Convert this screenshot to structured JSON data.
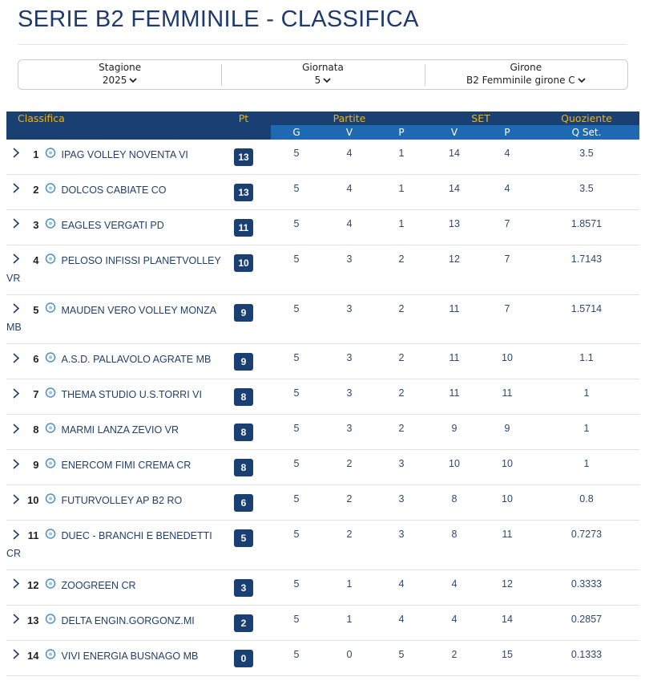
{
  "header": {
    "title": "SERIE B2 FEMMINILE - CLASSIFICA"
  },
  "filters": [
    {
      "label": "Stagione",
      "value": "2025"
    },
    {
      "label": "Giornata",
      "value": "5"
    },
    {
      "label": "Girone",
      "value": "B2 Femminile girone C"
    }
  ],
  "table": {
    "header_groups": [
      "Classifica",
      "Pt",
      "Partite",
      "SET",
      "Quoziente"
    ],
    "columns": [
      "G",
      "V",
      "P",
      "V",
      "P",
      "Q Set."
    ],
    "rows": [
      [
        1,
        "IPAG VOLLEY NOVENTA VI",
        13,
        5,
        4,
        1,
        14,
        4,
        3.5
      ],
      [
        2,
        "DOLCOS CABIATE CO",
        13,
        5,
        4,
        1,
        14,
        4,
        3.5
      ],
      [
        3,
        "EAGLES VERGATI PD",
        11,
        5,
        4,
        1,
        13,
        7,
        1.8571
      ],
      [
        4,
        "PELOSO INFISSI PLANETVOLLEY VR",
        10,
        5,
        3,
        2,
        12,
        7,
        1.7143
      ],
      [
        5,
        "MAUDEN VERO VOLLEY MONZA MB",
        9,
        5,
        3,
        2,
        11,
        7,
        1.5714
      ],
      [
        6,
        "A.S.D. PALLAVOLO AGRATE MB",
        9,
        5,
        3,
        2,
        11,
        10,
        1.1
      ],
      [
        7,
        "THEMA STUDIO U.S.TORRI VI",
        8,
        5,
        3,
        2,
        11,
        11,
        1
      ],
      [
        8,
        "MARMI LANZA ZEVIO VR",
        8,
        5,
        3,
        2,
        9,
        9,
        1
      ],
      [
        9,
        "ENERCOM FIMI CREMA CR",
        8,
        5,
        2,
        3,
        10,
        10,
        1
      ],
      [
        10,
        "FUTURVOLLEY AP B2 RO",
        6,
        5,
        2,
        3,
        8,
        10,
        0.8
      ],
      [
        11,
        "DUEC - BRANCHI E BENEDETTI CR",
        5,
        5,
        2,
        3,
        8,
        11,
        0.7273
      ],
      [
        12,
        "ZOOGREEN CR",
        3,
        5,
        1,
        4,
        4,
        12,
        0.3333
      ],
      [
        13,
        "DELTA ENGIN.GORGONZ.MI",
        2,
        5,
        1,
        4,
        4,
        14,
        0.2857
      ],
      [
        14,
        "VIVI ENERGIA BUSNAGO MB",
        0,
        5,
        0,
        5,
        2,
        15,
        0.1333
      ]
    ]
  }
}
